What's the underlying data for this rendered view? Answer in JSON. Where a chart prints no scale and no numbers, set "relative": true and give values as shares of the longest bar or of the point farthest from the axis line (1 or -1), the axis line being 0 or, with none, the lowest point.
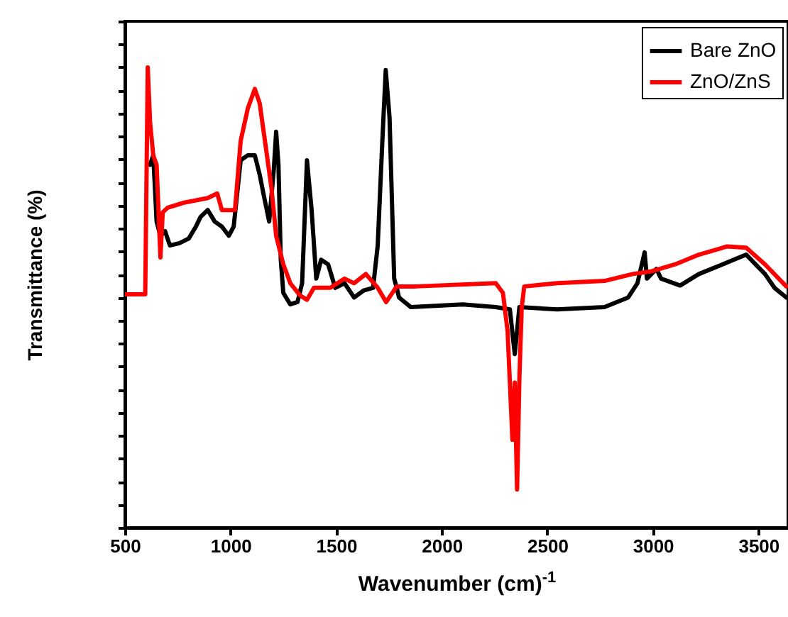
{
  "chart_data": {
    "type": "line",
    "xlabel": "Wavenumber (cm)$^{-1}$",
    "ylabel": "Transmittance (%)",
    "relative": true,
    "xlim": [
      500,
      3640
    ],
    "xticks": [
      500,
      1000,
      1500,
      2000,
      2500,
      3000,
      3500
    ],
    "legend": "top right",
    "line_style": "solid",
    "marker": "none",
    "grid": false,
    "series": [
      {
        "name": "Bare ZnO",
        "color": "#000000",
        "x": [
          619,
          634,
          650,
          668,
          690,
          713,
          758,
          802,
          836,
          858,
          892,
          925,
          959,
          992,
          1015,
          1048,
          1082,
          1115,
          1138,
          1160,
          1183,
          1205,
          1216,
          1227,
          1238,
          1250,
          1283,
          1317,
          1339,
          1362,
          1384,
          1406,
          1429,
          1462,
          1496,
          1540,
          1585,
          1630,
          1675,
          1697,
          1719,
          1735,
          1753,
          1775,
          1787,
          1798,
          1854,
          2100,
          2256,
          2323,
          2346,
          2357,
          2368,
          2547,
          2771,
          2883,
          2927,
          2961,
          2972,
          3017,
          3039,
          3129,
          3218,
          3442,
          3531,
          3576,
          3632
        ],
        "values": [
          0.788,
          0.809,
          0.665,
          0.634,
          0.644,
          0.613,
          0.618,
          0.628,
          0.654,
          0.675,
          0.69,
          0.665,
          0.654,
          0.634,
          0.654,
          0.798,
          0.809,
          0.809,
          0.767,
          0.716,
          0.665,
          0.778,
          0.86,
          0.788,
          0.582,
          0.51,
          0.485,
          0.49,
          0.531,
          0.798,
          0.69,
          0.541,
          0.582,
          0.572,
          0.521,
          0.531,
          0.5,
          0.515,
          0.521,
          0.613,
          0.84,
          0.994,
          0.891,
          0.541,
          0.521,
          0.5,
          0.479,
          0.485,
          0.479,
          0.474,
          0.377,
          0.427,
          0.479,
          0.474,
          0.479,
          0.5,
          0.531,
          0.598,
          0.541,
          0.562,
          0.541,
          0.526,
          0.551,
          0.593,
          0.551,
          0.521,
          0.5
        ]
      },
      {
        "name": "ZnO/ZnS",
        "color": "#ff0000",
        "x": [
          500,
          596,
          608,
          619,
          634,
          650,
          668,
          679,
          702,
          780,
          892,
          937,
          959,
          992,
          1021,
          1048,
          1082,
          1115,
          1138,
          1160,
          1194,
          1216,
          1250,
          1283,
          1328,
          1362,
          1395,
          1473,
          1540,
          1585,
          1641,
          1697,
          1737,
          1787,
          1876,
          2256,
          2290,
          2312,
          2335,
          2346,
          2357,
          2368,
          2379,
          2391,
          2547,
          2771,
          2905,
          2995,
          3106,
          3218,
          3352,
          3442,
          3531,
          3632
        ],
        "values": [
          0.507,
          0.507,
          1.0,
          0.881,
          0.809,
          0.788,
          0.587,
          0.685,
          0.695,
          0.706,
          0.716,
          0.726,
          0.69,
          0.69,
          0.69,
          0.84,
          0.911,
          0.953,
          0.922,
          0.85,
          0.737,
          0.634,
          0.572,
          0.531,
          0.505,
          0.495,
          0.521,
          0.521,
          0.541,
          0.531,
          0.551,
          0.521,
          0.49,
          0.524,
          0.524,
          0.531,
          0.51,
          0.427,
          0.191,
          0.315,
          0.083,
          0.325,
          0.479,
          0.524,
          0.531,
          0.536,
          0.551,
          0.557,
          0.572,
          0.593,
          0.611,
          0.608,
          0.572,
          0.524
        ]
      }
    ]
  }
}
